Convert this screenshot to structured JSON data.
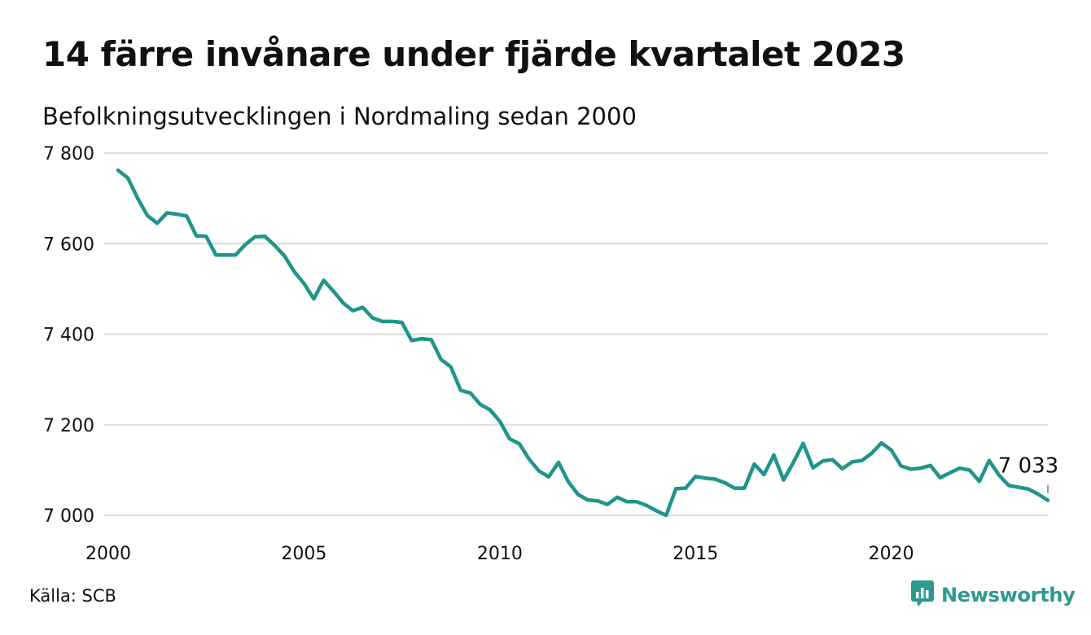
{
  "title": "14 färre invånare under fjärde kvartalet 2023",
  "subtitle": "Befolkningsutvecklingen i Nordmaling sedan 2000",
  "source": "Källa: SCB",
  "brand": {
    "name": "Newsworthy",
    "icon": "newsworthy-logo-icon",
    "color": "#2c9a8f"
  },
  "chart_data": {
    "type": "line",
    "title": "14 färre invånare under fjärde kvartalet 2023",
    "subtitle": "Befolkningsutvecklingen i Nordmaling sedan 2000",
    "xlabel": "",
    "ylabel": "",
    "xlim": [
      2000.0,
      2024.0
    ],
    "ylim": [
      7000,
      7800
    ],
    "x_ticks": [
      2000,
      2005,
      2010,
      2015,
      2020
    ],
    "x_tick_labels": [
      "2000",
      "2005",
      "2010",
      "2015",
      "2020"
    ],
    "y_ticks": [
      7000,
      7200,
      7400,
      7600,
      7800
    ],
    "y_tick_labels": [
      "7 000",
      "7 200",
      "7 400",
      "7 600",
      "7 800"
    ],
    "grid": "horizontal",
    "legend": "none",
    "line_color": "#1f9589",
    "annotation": {
      "text": "7 033",
      "value": 7033
    },
    "series": [
      {
        "x": [
          2000.25,
          2000.5,
          2000.75,
          2001.0,
          2001.25,
          2001.5,
          2001.75,
          2002.0,
          2002.25,
          2002.5,
          2002.75,
          2003.0,
          2003.25,
          2003.5,
          2003.75,
          2004.0,
          2004.25,
          2004.5,
          2004.75,
          2005.0,
          2005.25,
          2005.5,
          2005.75,
          2006.0,
          2006.25,
          2006.5,
          2006.75,
          2007.0,
          2007.25,
          2007.5,
          2007.75,
          2008.0,
          2008.25,
          2008.5,
          2008.75,
          2009.0,
          2009.25,
          2009.5,
          2009.75,
          2010.0,
          2010.25,
          2010.5,
          2010.75,
          2011.0,
          2011.25,
          2011.5,
          2011.75,
          2012.0,
          2012.25,
          2012.5,
          2012.75,
          2013.0,
          2013.25,
          2013.5,
          2013.75,
          2014.0,
          2014.25,
          2014.5,
          2014.75,
          2015.0,
          2015.25,
          2015.5,
          2015.75,
          2016.0,
          2016.25,
          2016.5,
          2016.75,
          2017.0,
          2017.25,
          2017.5,
          2017.75,
          2018.0,
          2018.25,
          2018.5,
          2018.75,
          2019.0,
          2019.25,
          2019.5,
          2019.75,
          2020.0,
          2020.25,
          2020.5,
          2020.75,
          2021.0,
          2021.25,
          2021.5,
          2021.75,
          2022.0,
          2022.25,
          2022.5,
          2022.75,
          2023.0,
          2023.25,
          2023.5,
          2023.75,
          2024.0
        ],
        "values": [
          7762,
          7745,
          7700,
          7662,
          7645,
          7668,
          7665,
          7661,
          7617,
          7616,
          7575,
          7575,
          7575,
          7598,
          7615,
          7616,
          7596,
          7573,
          7538,
          7512,
          7478,
          7519,
          7495,
          7469,
          7452,
          7459,
          7436,
          7428,
          7428,
          7426,
          7386,
          7390,
          7388,
          7344,
          7328,
          7276,
          7270,
          7245,
          7233,
          7208,
          7169,
          7158,
          7124,
          7098,
          7085,
          7117,
          7074,
          7046,
          7034,
          7032,
          7024,
          7040,
          7030,
          7030,
          7022,
          7010,
          7000,
          7059,
          7060,
          7086,
          7082,
          7080,
          7072,
          7060,
          7060,
          7113,
          7090,
          7133,
          7078,
          7117,
          7159,
          7105,
          7120,
          7123,
          7103,
          7118,
          7121,
          7137,
          7160,
          7144,
          7109,
          7102,
          7104,
          7110,
          7083,
          7094,
          7104,
          7100,
          7075,
          7121,
          7089,
          7066,
          7062,
          7058,
          7047,
          7033
        ]
      }
    ]
  }
}
